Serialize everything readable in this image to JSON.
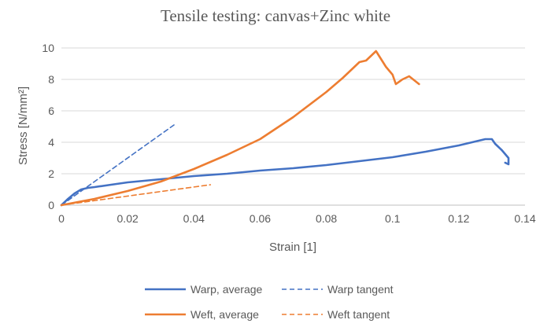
{
  "chart_data": {
    "type": "line",
    "title": "Tensile testing: canvas+Zinc white",
    "xlabel": "Strain [1]",
    "ylabel": "Stress [N/mm²]",
    "xlim": [
      0,
      0.14
    ],
    "ylim": [
      0,
      10
    ],
    "x_ticks": [
      0,
      0.02,
      0.04,
      0.06,
      0.08,
      0.1,
      0.12,
      0.14
    ],
    "x_tick_labels": [
      "0",
      "0.02",
      "0.04",
      "0.06",
      "0.08",
      "0.1",
      "0.12",
      "0.14"
    ],
    "y_ticks": [
      0,
      2,
      4,
      6,
      8,
      10
    ],
    "y_tick_labels": [
      "0",
      "2",
      "4",
      "6",
      "8",
      "10"
    ],
    "grid": "horizontal",
    "legend_position": "bottom",
    "series": [
      {
        "name": "Warp, average",
        "color": "#4472c4",
        "style": "solid",
        "x": [
          0,
          0.002,
          0.004,
          0.006,
          0.008,
          0.01,
          0.015,
          0.02,
          0.03,
          0.04,
          0.05,
          0.06,
          0.07,
          0.08,
          0.09,
          0.1,
          0.11,
          0.12,
          0.125,
          0.128,
          0.13,
          0.131,
          0.133,
          0.135,
          0.135,
          0.134
        ],
        "y": [
          0,
          0.4,
          0.75,
          1.0,
          1.1,
          1.15,
          1.3,
          1.45,
          1.65,
          1.85,
          2.0,
          2.2,
          2.35,
          2.55,
          2.8,
          3.05,
          3.4,
          3.8,
          4.05,
          4.2,
          4.2,
          3.9,
          3.5,
          3.0,
          2.6,
          2.7
        ]
      },
      {
        "name": "Warp tangent",
        "color": "#4472c4",
        "style": "dashed",
        "x": [
          0,
          0.034
        ],
        "y": [
          0,
          5.1
        ]
      },
      {
        "name": "Weft, average",
        "color": "#ed7d31",
        "style": "solid",
        "x": [
          0,
          0.01,
          0.02,
          0.03,
          0.04,
          0.05,
          0.06,
          0.07,
          0.08,
          0.085,
          0.09,
          0.092,
          0.095,
          0.098,
          0.1,
          0.101,
          0.103,
          0.105,
          0.108
        ],
        "y": [
          0,
          0.4,
          0.9,
          1.5,
          2.3,
          3.2,
          4.2,
          5.6,
          7.2,
          8.1,
          9.1,
          9.2,
          9.8,
          8.8,
          8.3,
          7.7,
          8.0,
          8.2,
          7.7
        ]
      },
      {
        "name": "Weft tangent",
        "color": "#ed7d31",
        "style": "dashed",
        "x": [
          0,
          0.045
        ],
        "y": [
          0,
          1.3
        ]
      }
    ]
  }
}
